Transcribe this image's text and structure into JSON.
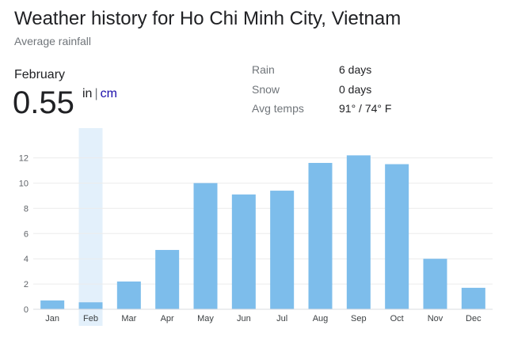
{
  "header": {
    "title": "Weather history for Ho Chi Minh City, Vietnam",
    "subtitle": "Average rainfall"
  },
  "selected": {
    "month": "February",
    "value": "0.55",
    "unit_in": "in",
    "unit_sep": "|",
    "unit_cm": "cm"
  },
  "stats": [
    {
      "label": "Rain",
      "value": "6 days"
    },
    {
      "label": "Snow",
      "value": "0 days"
    },
    {
      "label": "Avg temps",
      "value": "91° / 74° F"
    }
  ],
  "colors": {
    "bar": "#7dbdeb",
    "highlight": "#e3f0fb",
    "grid": "#ececec",
    "link": "#1a0dab"
  },
  "chart_data": {
    "type": "bar",
    "title": "",
    "xlabel": "",
    "ylabel": "",
    "categories": [
      "Jan",
      "Feb",
      "Mar",
      "Apr",
      "May",
      "Jun",
      "Jul",
      "Aug",
      "Sep",
      "Oct",
      "Nov",
      "Dec"
    ],
    "values": [
      0.7,
      0.55,
      2.2,
      4.7,
      10.0,
      9.1,
      9.4,
      11.6,
      12.2,
      11.5,
      4.0,
      1.7
    ],
    "yticks": [
      0,
      2,
      4,
      6,
      8,
      10,
      12
    ],
    "ylim": [
      0,
      14
    ],
    "selected_index": 1,
    "grid": true
  }
}
